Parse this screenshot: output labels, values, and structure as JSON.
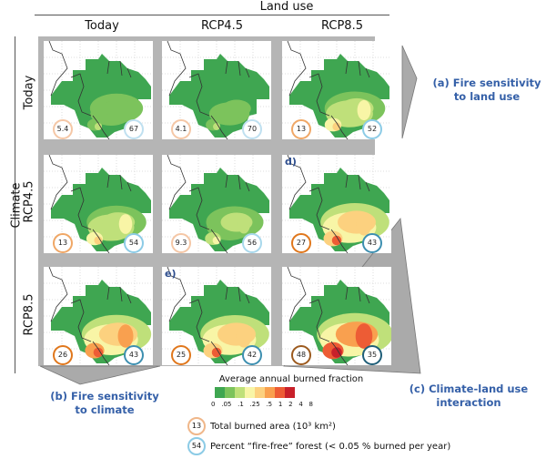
{
  "header": {
    "land_use_title": "Land use",
    "columns": [
      "Today",
      "RCP4.5",
      "RCP8.5"
    ]
  },
  "side": {
    "climate_title": "Climate",
    "rows": [
      "Today",
      "RCP4.5",
      "RCP8.5"
    ]
  },
  "panels": [
    {
      "row": 0,
      "col": 0,
      "burned_area": "5.4",
      "fire_free": "67",
      "fire_level": 0.22,
      "label": ""
    },
    {
      "row": 0,
      "col": 1,
      "burned_area": "4.1",
      "fire_free": "70",
      "fire_level": 0.18,
      "label": ""
    },
    {
      "row": 0,
      "col": 2,
      "burned_area": "13",
      "fire_free": "52",
      "fire_level": 0.45,
      "label": ""
    },
    {
      "row": 1,
      "col": 0,
      "burned_area": "13",
      "fire_free": "54",
      "fire_level": 0.42,
      "label": ""
    },
    {
      "row": 1,
      "col": 1,
      "burned_area": "9.3",
      "fire_free": "56",
      "fire_level": 0.35,
      "label": ""
    },
    {
      "row": 1,
      "col": 2,
      "burned_area": "27",
      "fire_free": "43",
      "fire_level": 0.7,
      "label": "d)"
    },
    {
      "row": 2,
      "col": 0,
      "burned_area": "26",
      "fire_free": "43",
      "fire_level": 0.72,
      "label": ""
    },
    {
      "row": 2,
      "col": 1,
      "burned_area": "25",
      "fire_free": "42",
      "fire_level": 0.7,
      "label": "e)"
    },
    {
      "row": 2,
      "col": 2,
      "burned_area": "48",
      "fire_free": "35",
      "fire_level": 0.92,
      "label": ""
    }
  ],
  "burned_circle_colors": [
    "#f5c7a6",
    "#f5c7a6",
    "#f0a766",
    "#f0a766",
    "#f5c7a6",
    "#e0771c",
    "#e0771c",
    "#e0771c",
    "#9c5a1e"
  ],
  "fire_free_circle_colors": [
    "#bfe0f0",
    "#bfe0f0",
    "#8ccbe6",
    "#8ccbe6",
    "#a8d8ec",
    "#3d8fb0",
    "#3d8fb0",
    "#3d8fb0",
    "#1f5e78"
  ],
  "callouts": {
    "a": [
      "(a) Fire sensitivity",
      "to land use"
    ],
    "b": [
      "(b) Fire sensitivity",
      "to climate"
    ],
    "c": [
      "(c) Climate-land use",
      "interaction"
    ]
  },
  "legend": {
    "title": "Average annual burned fraction",
    "colors": [
      "#3fa651",
      "#7cc35c",
      "#bfe07a",
      "#f8f5a6",
      "#fcd17f",
      "#f9a04f",
      "#ed5c35",
      "#c8202a"
    ],
    "ticks": [
      "0",
      ".05",
      ".1",
      ".25",
      ".5",
      "1",
      "2",
      "4",
      "8"
    ],
    "burned_example": "13",
    "burned_text": "Total burned area (10³ km²)",
    "firefree_example": "54",
    "firefree_text": "Percent “fire-free” forest (< 0.05 % burned per year)"
  }
}
